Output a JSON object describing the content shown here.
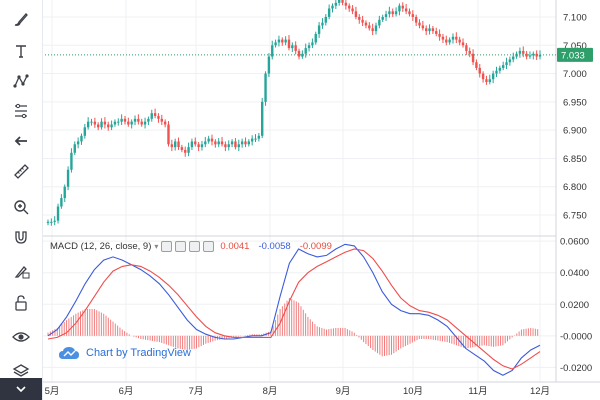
{
  "toolbar": {
    "tools": [
      "brush-icon",
      "text-tool-icon",
      "pattern-icon",
      "measure-lines-icon",
      "back-arrow-icon",
      "ruler-icon",
      "zoom-icon",
      "magnet-icon",
      "lock-draw-icon",
      "lock-icon",
      "eye-icon",
      "layers-icon"
    ]
  },
  "colors": {
    "up": "#26a69a",
    "down": "#ef5350",
    "macd_line": "#3b5bdb",
    "signal_line": "#ef4d4d",
    "price_line": "#2e9e6b",
    "price_badge_bg": "#2e9e6b",
    "grid": "#eef0f3",
    "axis_text": "#333333"
  },
  "price_axis": {
    "ticks": [
      "7.100",
      "7.050",
      "7.000",
      "6.950",
      "6.900",
      "6.850",
      "6.800",
      "6.750"
    ],
    "last_price": "7.033"
  },
  "macd_axis": {
    "ticks": [
      "0.0600",
      "0.0400",
      "0.0200",
      "-0.0000",
      "-0.0200"
    ]
  },
  "time_axis": {
    "ticks": [
      "5月",
      "6月",
      "7月",
      "8月",
      "9月",
      "10月",
      "11月",
      "12月"
    ]
  },
  "macd_legend": {
    "title": "MACD (12, 26, close, 9)",
    "histogram": "0.0041",
    "macd": "-0.0058",
    "signal": "-0.0099"
  },
  "watermark": {
    "text": "Chart by TradingView"
  },
  "chart_data": [
    {
      "type": "candlestick",
      "xlabel": "",
      "ylabel": "",
      "ylim": [
        6.72,
        7.13
      ],
      "x_ticks": [
        "5月",
        "6月",
        "7月",
        "8月",
        "9月",
        "10月",
        "11月",
        "12月"
      ],
      "y_ticks": [
        6.75,
        6.8,
        6.85,
        6.9,
        6.95,
        7.0,
        7.05,
        7.1
      ],
      "last_price": 7.033,
      "close_series": [
        6.738,
        6.738,
        6.74,
        6.765,
        6.78,
        6.8,
        6.83,
        6.86,
        6.875,
        6.88,
        6.89,
        6.905,
        6.915,
        6.915,
        6.91,
        6.905,
        6.915,
        6.91,
        6.905,
        6.91,
        6.915,
        6.915,
        6.92,
        6.915,
        6.91,
        6.915,
        6.92,
        6.915,
        6.91,
        6.915,
        6.92,
        6.93,
        6.925,
        6.92,
        6.915,
        6.91,
        6.875,
        6.87,
        6.88,
        6.87,
        6.865,
        6.86,
        6.87,
        6.88,
        6.875,
        6.87,
        6.875,
        6.88,
        6.885,
        6.88,
        6.875,
        6.88,
        6.875,
        6.87,
        6.875,
        6.88,
        6.87,
        6.875,
        6.88,
        6.875,
        6.88,
        6.885,
        6.885,
        6.89,
        6.95,
        7.0,
        7.03,
        7.05,
        7.055,
        7.06,
        7.055,
        7.06,
        7.045,
        7.05,
        7.04,
        7.03,
        7.035,
        7.045,
        7.05,
        7.055,
        7.07,
        7.085,
        7.09,
        7.1,
        7.115,
        7.12,
        7.125,
        7.13,
        7.125,
        7.12,
        7.115,
        7.11,
        7.1,
        7.095,
        7.09,
        7.085,
        7.08,
        7.075,
        7.085,
        7.095,
        7.1,
        7.105,
        7.11,
        7.105,
        7.11,
        7.12,
        7.115,
        7.11,
        7.105,
        7.1,
        7.09,
        7.085,
        7.08,
        7.075,
        7.08,
        7.075,
        7.07,
        7.065,
        7.06,
        7.055,
        7.06,
        7.065,
        7.06,
        7.055,
        7.05,
        7.04,
        7.035,
        7.02,
        7.01,
        7.0,
        6.99,
        6.985,
        6.99,
        7.0,
        7.005,
        7.01,
        7.015,
        7.02,
        7.025,
        7.03,
        7.035,
        7.04,
        7.035,
        7.03,
        7.032,
        7.035,
        7.03,
        7.033
      ]
    },
    {
      "type": "line",
      "title": "MACD (12, 26, close, 9)",
      "ylim": [
        -0.028,
        0.062
      ],
      "y_ticks": [
        0.06,
        0.04,
        0.02,
        0.0,
        -0.02
      ],
      "series": [
        {
          "values": [
            0.0,
            0.004,
            0.012,
            0.022,
            0.033,
            0.042,
            0.048,
            0.05,
            0.048,
            0.045,
            0.042,
            0.038,
            0.033,
            0.026,
            0.018,
            0.01,
            0.004,
            0.001,
            -0.001,
            -0.002,
            -0.002,
            -0.001,
            0.0,
            0.0,
            0.002,
            0.025,
            0.046,
            0.055,
            0.052,
            0.05,
            0.051,
            0.055,
            0.058,
            0.057,
            0.05,
            0.04,
            0.028,
            0.02,
            0.016,
            0.014,
            0.014,
            0.013,
            0.01,
            0.006,
            -0.001,
            -0.008,
            -0.012,
            -0.016,
            -0.022,
            -0.025,
            -0.022,
            -0.014,
            -0.009,
            -0.006
          ]
        },
        {
          "values": [
            -0.002,
            -0.001,
            0.002,
            0.008,
            0.016,
            0.025,
            0.034,
            0.041,
            0.044,
            0.045,
            0.044,
            0.041,
            0.037,
            0.032,
            0.026,
            0.019,
            0.012,
            0.006,
            0.002,
            0.0,
            -0.001,
            -0.001,
            -0.001,
            -0.001,
            -0.001,
            0.008,
            0.022,
            0.034,
            0.04,
            0.044,
            0.047,
            0.05,
            0.053,
            0.055,
            0.054,
            0.049,
            0.041,
            0.032,
            0.024,
            0.019,
            0.016,
            0.015,
            0.013,
            0.01,
            0.005,
            0.0,
            -0.005,
            -0.01,
            -0.015,
            -0.019,
            -0.021,
            -0.018,
            -0.014,
            -0.01
          ]
        },
        {
          "values": [
            0.002,
            0.005,
            0.01,
            0.014,
            0.017,
            0.017,
            0.014,
            0.009,
            0.004,
            0.0,
            -0.002,
            -0.003,
            -0.004,
            -0.006,
            -0.008,
            -0.009,
            -0.008,
            -0.005,
            -0.003,
            -0.002,
            -0.001,
            0.0,
            0.001,
            0.001,
            0.003,
            0.017,
            0.024,
            0.021,
            0.012,
            0.006,
            0.004,
            0.005,
            0.005,
            0.002,
            -0.004,
            -0.009,
            -0.013,
            -0.012,
            -0.008,
            -0.005,
            -0.002,
            -0.002,
            -0.003,
            -0.004,
            -0.006,
            -0.008,
            -0.007,
            -0.006,
            -0.007,
            -0.006,
            -0.001,
            0.004,
            0.005,
            0.004
          ]
        }
      ]
    }
  ]
}
